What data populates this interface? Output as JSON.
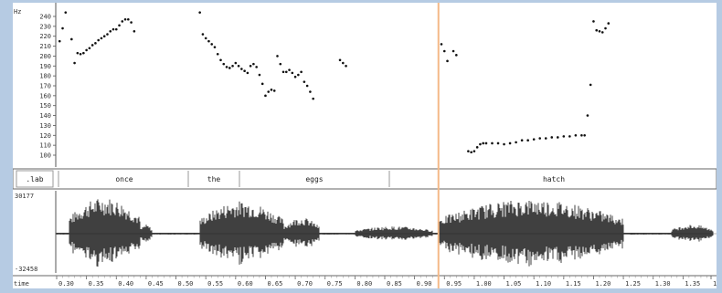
{
  "pitch_panel": {
    "unit_label": "Hz",
    "tick_labels": [
      "240",
      "230",
      "220",
      "210",
      "200",
      "190",
      "180",
      "170",
      "160",
      "150",
      "140",
      "130",
      "120",
      "110",
      "100"
    ]
  },
  "label_panel": {
    "tier_name": ".lab",
    "words": [
      "once",
      "the",
      "eggs",
      "hatch"
    ]
  },
  "wave_panel": {
    "max_label": "30177",
    "min_label": "-32458"
  },
  "time_panel": {
    "name": "time",
    "tick_labels": [
      "0.30",
      "0.35",
      "0.40",
      "0.45",
      "0.50",
      "0.55",
      "0.60",
      "0.65",
      "0.70",
      "0.75",
      "0.80",
      "0.85",
      "0.90",
      "0.95",
      "1.00",
      "1.05",
      "1.10",
      "1.15",
      "1.20",
      "1.25",
      "1.30",
      "1.35",
      "1"
    ]
  },
  "colors": {
    "cursor": "#f4b987",
    "background_frame": "#b6cbe3"
  },
  "chart_data": {
    "type": "scatter",
    "title": "",
    "xlabel": "time",
    "ylabel": "Hz",
    "ylim": [
      95,
      245
    ],
    "cursor_time": 0.94,
    "series": [
      {
        "points": [
          [
            0.305,
            215
          ],
          [
            0.31,
            228
          ],
          [
            0.315,
            244
          ],
          [
            0.325,
            217
          ],
          [
            0.33,
            193
          ],
          [
            0.335,
            203
          ],
          [
            0.34,
            202
          ],
          [
            0.345,
            203
          ],
          [
            0.35,
            206
          ],
          [
            0.355,
            208
          ],
          [
            0.36,
            211
          ],
          [
            0.365,
            213
          ],
          [
            0.37,
            216
          ],
          [
            0.375,
            218
          ],
          [
            0.38,
            220
          ],
          [
            0.385,
            222
          ],
          [
            0.39,
            225
          ],
          [
            0.395,
            227
          ],
          [
            0.4,
            227
          ],
          [
            0.405,
            231
          ],
          [
            0.41,
            235
          ],
          [
            0.415,
            237
          ],
          [
            0.42,
            237
          ],
          [
            0.425,
            234
          ],
          [
            0.43,
            225
          ],
          [
            0.54,
            244
          ],
          [
            0.545,
            222
          ],
          [
            0.55,
            218
          ],
          [
            0.555,
            215
          ],
          [
            0.56,
            212
          ],
          [
            0.565,
            209
          ],
          [
            0.57,
            202
          ],
          [
            0.575,
            196
          ],
          [
            0.58,
            192
          ],
          [
            0.585,
            189
          ],
          [
            0.59,
            188
          ],
          [
            0.595,
            190
          ],
          [
            0.6,
            193
          ],
          [
            0.605,
            190
          ],
          [
            0.61,
            187
          ],
          [
            0.615,
            185
          ],
          [
            0.62,
            183
          ],
          [
            0.625,
            190
          ],
          [
            0.63,
            192
          ],
          [
            0.635,
            189
          ],
          [
            0.64,
            181
          ],
          [
            0.645,
            172
          ],
          [
            0.65,
            160
          ],
          [
            0.655,
            164
          ],
          [
            0.66,
            166
          ],
          [
            0.665,
            165
          ],
          [
            0.67,
            200
          ],
          [
            0.675,
            192
          ],
          [
            0.68,
            184
          ],
          [
            0.685,
            184
          ],
          [
            0.69,
            186
          ],
          [
            0.695,
            183
          ],
          [
            0.7,
            179
          ],
          [
            0.705,
            181
          ],
          [
            0.71,
            184
          ],
          [
            0.715,
            174
          ],
          [
            0.72,
            170
          ],
          [
            0.725,
            164
          ],
          [
            0.73,
            157
          ],
          [
            0.775,
            196
          ],
          [
            0.78,
            193
          ],
          [
            0.785,
            190
          ],
          [
            0.945,
            212
          ],
          [
            0.95,
            205
          ],
          [
            0.955,
            195
          ],
          [
            0.965,
            205
          ],
          [
            0.97,
            201
          ],
          [
            0.99,
            104
          ],
          [
            0.995,
            103
          ],
          [
            1.0,
            104
          ],
          [
            1.005,
            108
          ],
          [
            1.01,
            111
          ],
          [
            1.015,
            112
          ],
          [
            1.02,
            112
          ],
          [
            1.03,
            112
          ],
          [
            1.04,
            112
          ],
          [
            1.05,
            111
          ],
          [
            1.06,
            112
          ],
          [
            1.07,
            113
          ],
          [
            1.08,
            115
          ],
          [
            1.09,
            115
          ],
          [
            1.1,
            116
          ],
          [
            1.11,
            117
          ],
          [
            1.12,
            117
          ],
          [
            1.13,
            118
          ],
          [
            1.14,
            118
          ],
          [
            1.15,
            119
          ],
          [
            1.16,
            119
          ],
          [
            1.17,
            120
          ],
          [
            1.18,
            120
          ],
          [
            1.185,
            120
          ],
          [
            1.19,
            140
          ],
          [
            1.195,
            171
          ],
          [
            1.2,
            235
          ],
          [
            1.205,
            226
          ],
          [
            1.21,
            225
          ],
          [
            1.215,
            224
          ],
          [
            1.22,
            228
          ],
          [
            1.225,
            233
          ]
        ]
      }
    ]
  }
}
